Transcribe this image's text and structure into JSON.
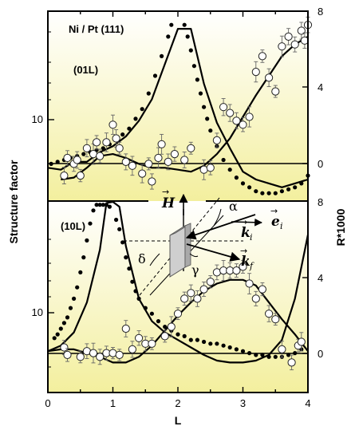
{
  "chart_data": [
    {
      "type": "scatter",
      "panel": "top",
      "title": "Ni / Pt (111)",
      "annotation": "(01L)",
      "xlabel": "L",
      "ylabel": "Structure factor",
      "y2label": "R*1000",
      "xlim": [
        0,
        4
      ],
      "x_ticks": [
        "0",
        "1",
        "2",
        "3",
        "4"
      ],
      "y_left_ticks": [
        "10"
      ],
      "y_right_ticks": [
        "0",
        "4",
        "8"
      ],
      "y2lim": [
        -1.7,
        8
      ],
      "series": [
        {
          "style": "filled-dots",
          "x": [
            0.05,
            0.15,
            0.25,
            0.35,
            0.45,
            0.55,
            0.65,
            0.75,
            0.85,
            0.95,
            1.05,
            1.15,
            1.25,
            1.35,
            1.45,
            1.55,
            1.65,
            1.75,
            1.85,
            1.9,
            2.1,
            2.15,
            2.2,
            2.25,
            2.3,
            2.35,
            2.4,
            2.45,
            2.5,
            2.6,
            2.7,
            2.8,
            2.9,
            3.0,
            3.1,
            3.2,
            3.3,
            3.4,
            3.5,
            3.6,
            3.7,
            3.8,
            3.9,
            4.0
          ],
          "y": [
            0.2,
            0.3,
            0.4,
            0.5,
            0.6,
            0.7,
            0.8,
            0.9,
            1.0,
            1.2,
            1.4,
            1.7,
            2.0,
            2.5,
            3.0,
            3.8,
            4.7,
            5.7,
            6.7,
            7.3,
            7.3,
            6.7,
            6.0,
            5.2,
            4.5,
            3.8,
            3.1,
            2.5,
            1.9,
            1.1,
            0.4,
            -0.1,
            -0.5,
            -0.8,
            -1.0,
            -1.2,
            -1.3,
            -1.3,
            -1.3,
            -1.2,
            -1.1,
            -1.0,
            -0.8,
            -0.4
          ]
        },
        {
          "style": "open-circles",
          "x": [
            0.25,
            0.3,
            0.4,
            0.45,
            0.5,
            0.6,
            0.7,
            0.75,
            0.8,
            0.9,
            1.0,
            1.05,
            1.1,
            1.2,
            1.3,
            1.45,
            1.55,
            1.6,
            1.7,
            1.75,
            1.85,
            1.95,
            2.1,
            2.2,
            2.4,
            2.5,
            2.6,
            2.7,
            2.8,
            2.9,
            3.0,
            3.1,
            3.2,
            3.3,
            3.4,
            3.5,
            3.6,
            3.7,
            3.8,
            3.9,
            3.95,
            4.0
          ],
          "y": [
            -0.4,
            0.5,
            0.2,
            0.4,
            -0.4,
            1.0,
            0.7,
            1.3,
            0.6,
            1.3,
            2.2,
            1.5,
            1.0,
            0.3,
            0.1,
            -0.3,
            0.2,
            -0.7,
            0.5,
            1.2,
            0.3,
            0.7,
            0.4,
            1.0,
            -0.1,
            0.0,
            1.4,
            3.1,
            2.8,
            2.4,
            2.2,
            2.6,
            4.9,
            5.7,
            4.6,
            3.9,
            6.2,
            6.7,
            6.3,
            7.0,
            6.5,
            7.3
          ]
        }
      ],
      "fit_curves": [
        {
          "x": [
            0,
            0.2,
            0.4,
            0.6,
            0.8,
            1.0,
            1.2,
            1.4,
            1.6,
            1.8,
            2.0,
            2.2,
            2.4,
            2.6,
            2.8,
            3.0,
            3.2,
            3.4,
            3.6,
            3.8,
            4.0
          ],
          "y": [
            0.0,
            -0.1,
            0.3,
            0.3,
            0.8,
            1.1,
            1.6,
            2.4,
            3.5,
            5.3,
            7.1,
            7.1,
            4.3,
            2.3,
            1.0,
            -0.2,
            -0.6,
            -0.8,
            -1.0,
            -0.8,
            -0.6
          ]
        },
        {
          "x": [
            0.2,
            0.4,
            0.6,
            0.8,
            1.0,
            1.2,
            1.4,
            1.6,
            1.8,
            2.0,
            2.2,
            2.4,
            2.6,
            2.8,
            3.0,
            3.2,
            3.4,
            3.6,
            3.8,
            4.0
          ],
          "y": [
            -0.6,
            -0.5,
            0.0,
            0.6,
            0.7,
            0.5,
            0.2,
            0.0,
            0.0,
            -0.1,
            -0.2,
            0.1,
            0.7,
            1.5,
            2.6,
            3.7,
            4.7,
            5.7,
            6.3,
            6.7
          ]
        }
      ]
    },
    {
      "type": "scatter",
      "panel": "bottom",
      "annotation": "(10L)",
      "xlabel": "L",
      "xlim": [
        0,
        4
      ],
      "x_ticks": [
        "0",
        "1",
        "2",
        "3",
        "4"
      ],
      "y_left_ticks": [
        "10"
      ],
      "y_right_ticks": [
        "0",
        "4",
        "8"
      ],
      "y2lim": [
        -2.2,
        8
      ],
      "series": [
        {
          "style": "filled-dots",
          "x": [
            0.1,
            0.15,
            0.2,
            0.25,
            0.3,
            0.35,
            0.4,
            0.45,
            0.5,
            0.55,
            0.6,
            0.65,
            0.7,
            0.75,
            0.8,
            0.85,
            0.9,
            0.95,
            1.05,
            1.1,
            1.15,
            1.2,
            1.25,
            1.3,
            1.35,
            1.4,
            1.5,
            1.6,
            1.7,
            1.8,
            1.9,
            2.0,
            2.1,
            2.2,
            2.3,
            2.4,
            2.5,
            2.6,
            2.7,
            2.8,
            2.9,
            3.0,
            3.1,
            3.2,
            3.3,
            3.4,
            3.5,
            3.6,
            3.7,
            3.8,
            3.9
          ],
          "y": [
            0.7,
            0.9,
            1.2,
            1.5,
            1.8,
            2.3,
            2.8,
            3.4,
            4.2,
            5.0,
            5.9,
            6.8,
            7.5,
            7.8,
            7.8,
            7.8,
            7.8,
            7.7,
            7.0,
            6.5,
            5.8,
            5.0,
            4.4,
            3.7,
            3.2,
            2.8,
            2.3,
            2.0,
            1.6,
            1.3,
            1.1,
            0.9,
            0.8,
            0.6,
            0.6,
            0.5,
            0.4,
            0.4,
            0.3,
            0.2,
            0.1,
            0.0,
            -0.1,
            -0.2,
            -0.2,
            -0.3,
            -0.3,
            -0.3,
            -0.2,
            -0.1,
            0.1
          ]
        },
        {
          "style": "open-circles",
          "x": [
            0.25,
            0.3,
            0.5,
            0.6,
            0.7,
            0.8,
            0.9,
            1.0,
            1.1,
            1.2,
            1.3,
            1.4,
            1.5,
            1.6,
            1.8,
            1.9,
            2.0,
            2.1,
            2.2,
            2.3,
            2.4,
            2.5,
            2.6,
            2.7,
            2.8,
            2.9,
            3.0,
            3.1,
            3.2,
            3.3,
            3.4,
            3.5,
            3.6,
            3.75,
            3.85,
            3.9
          ],
          "y": [
            0.2,
            -0.2,
            -0.3,
            0.0,
            -0.1,
            -0.3,
            -0.1,
            -0.1,
            -0.2,
            1.2,
            0.1,
            0.7,
            0.4,
            0.4,
            0.8,
            1.3,
            2.0,
            2.8,
            3.1,
            2.8,
            3.3,
            3.7,
            4.2,
            4.3,
            4.3,
            4.3,
            4.5,
            3.6,
            2.8,
            3.3,
            2.0,
            1.7,
            0.1,
            -0.6,
            0.3,
            0.5
          ]
        }
      ],
      "fit_curves": [
        {
          "x": [
            0,
            0.2,
            0.4,
            0.6,
            0.8,
            0.9,
            1.0,
            1.1,
            1.2,
            1.4,
            1.6,
            1.8,
            2.0,
            2.2,
            2.4,
            2.6,
            2.8,
            3.0,
            3.2,
            3.4,
            3.6,
            3.8,
            4.0
          ],
          "y": [
            0.0,
            0.3,
            1.0,
            2.6,
            5.4,
            7.9,
            8.0,
            7.7,
            5.6,
            2.8,
            1.6,
            1.0,
            0.6,
            0.2,
            -0.2,
            -0.5,
            -0.6,
            -0.6,
            -0.5,
            -0.2,
            0.6,
            2.8,
            6.2
          ]
        },
        {
          "x": [
            0,
            0.2,
            0.4,
            0.6,
            0.8,
            1.0,
            1.2,
            1.4,
            1.6,
            1.8,
            2.0,
            2.2,
            2.4,
            2.6,
            2.8,
            3.0,
            3.2,
            3.4,
            3.6,
            3.8,
            4.0
          ],
          "y": [
            0.0,
            0.1,
            0.1,
            -0.1,
            -0.3,
            -0.6,
            -0.6,
            -0.3,
            0.3,
            1.1,
            1.9,
            2.6,
            3.2,
            3.6,
            3.8,
            3.8,
            3.5,
            2.6,
            1.7,
            0.9,
            0.0
          ]
        }
      ]
    }
  ],
  "inset_labels": {
    "H": "H",
    "alpha": "α",
    "ki": "k",
    "ki_sub": "i",
    "ei": "e",
    "ei_sub": "i",
    "kf": "k",
    "kf_sub": "f",
    "delta": "δ",
    "gamma": "γ"
  }
}
